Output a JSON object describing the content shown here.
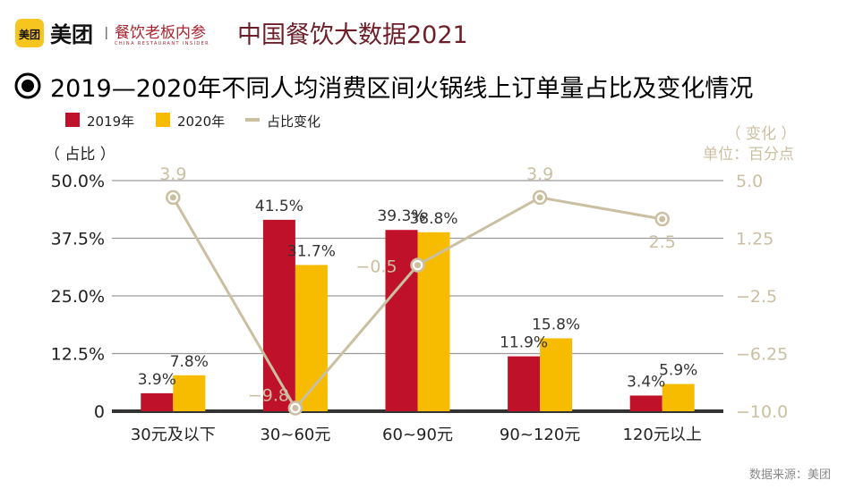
{
  "header": {
    "logo_icon_text": "美团",
    "brand": "美团",
    "partner_logo": "餐饮老板内参",
    "partner_logo_sub": "CHINA RESTAURANT INSIDER",
    "report_title": "中国餐饮大数据2021"
  },
  "chart_data": {
    "type": "bar+line",
    "title": "2019—2020年不同人均消费区间火锅线上订单量占比及变化情况",
    "categories": [
      "30元及以下",
      "30~60元",
      "60~90元",
      "90~120元",
      "120元以上"
    ],
    "series": [
      {
        "name": "2019年",
        "type": "bar",
        "axis": "left",
        "color": "#c0112a",
        "values": [
          3.9,
          41.5,
          39.3,
          11.9,
          3.4
        ],
        "labels": [
          "3.9%",
          "41.5%",
          "39.3%",
          "11.9%",
          "3.4%"
        ]
      },
      {
        "name": "2020年",
        "type": "bar",
        "axis": "left",
        "color": "#f7bb00",
        "values": [
          7.8,
          31.7,
          38.8,
          15.8,
          5.9
        ],
        "labels": [
          "7.8%",
          "31.7%",
          "38.8%",
          "15.8%",
          "5.9%"
        ]
      },
      {
        "name": "占比变化",
        "type": "line",
        "axis": "right",
        "color": "#cbbfa2",
        "values": [
          3.9,
          -9.8,
          -0.5,
          3.9,
          2.5
        ],
        "labels": [
          "3.9",
          "−9.8",
          "−0.5",
          "3.9",
          "2.5"
        ]
      }
    ],
    "left_axis": {
      "label": "（ 占比 ）",
      "ylim": [
        0,
        50
      ],
      "ticks": [
        "0",
        "12.5%",
        "25.0%",
        "37.5%",
        "50.0%"
      ]
    },
    "right_axis": {
      "label": "（ 变化 ）",
      "unit": "单位：百分点",
      "ylim": [
        -10,
        5
      ],
      "ticks": [
        "−10.0",
        "−6.25",
        "−2.5",
        "1.25",
        "5.0"
      ]
    },
    "grid": true,
    "legend": "top-left"
  },
  "footer": {
    "source": "数据来源：美团"
  }
}
